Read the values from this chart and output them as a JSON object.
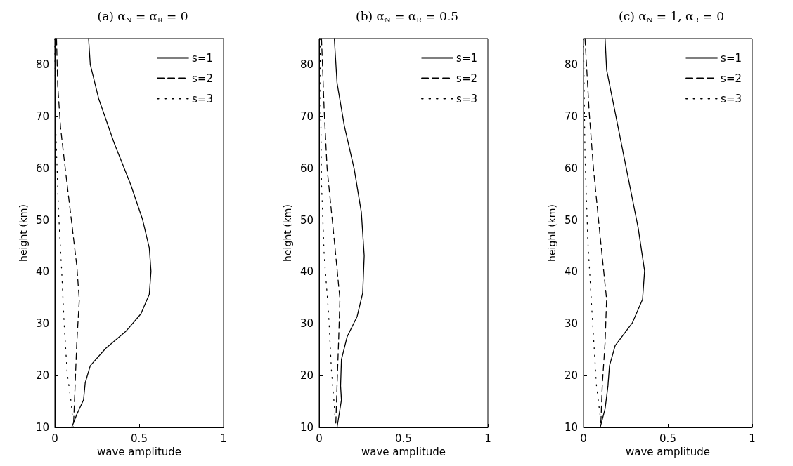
{
  "chart_data": [
    {
      "type": "line",
      "title": "(a) α$_{N}$ = α$_{R}$ = 0",
      "xlabel": "wave amplitude",
      "ylabel": "height (km)",
      "xlim": [
        0,
        1
      ],
      "xticks": [
        0,
        0.5,
        1
      ],
      "ylim": [
        10,
        85
      ],
      "yticks": [
        10,
        20,
        30,
        40,
        50,
        60,
        70,
        80
      ],
      "grid": false,
      "legend": "top right",
      "marker": "none",
      "series": [
        {
          "name": "s=1",
          "color": "#000000",
          "line_style": "solid",
          "x": [
            0.2,
            0.21,
            0.26,
            0.35,
            0.45,
            0.52,
            0.56,
            0.57,
            0.56,
            0.51,
            0.42,
            0.3,
            0.21,
            0.18,
            0.17,
            0.13,
            0.1
          ],
          "values": [
            85,
            80,
            73.4,
            65,
            56.8,
            50.1,
            44.6,
            40.1,
            35.7,
            31.9,
            28.5,
            25.2,
            21.9,
            18.6,
            15.3,
            12.5,
            10
          ]
        },
        {
          "name": "s=2",
          "color": "#000000",
          "line_style": "dashed",
          "x": [
            0.01,
            0.017,
            0.034,
            0.065,
            0.098,
            0.13,
            0.145,
            0.13,
            0.12,
            0.11
          ],
          "values": [
            85,
            76,
            67.8,
            59,
            50,
            41.2,
            34.6,
            26.3,
            18,
            10
          ]
        },
        {
          "name": "s=3",
          "color": "#000000",
          "line_style": "dotted",
          "x": [
            0,
            0.005,
            0.022,
            0.04,
            0.056,
            0.073,
            0.098,
            0.105
          ],
          "values": [
            85,
            68,
            51.5,
            40.5,
            29.5,
            20.6,
            14.5,
            11.5
          ]
        }
      ]
    },
    {
      "type": "line",
      "title": "(b) α$_{N}$ = α$_{R}$ = 0.5",
      "xlabel": "wave amplitude",
      "ylabel": "height (km)",
      "xlim": [
        0,
        1
      ],
      "xticks": [
        0,
        0.5,
        1
      ],
      "ylim": [
        10,
        85
      ],
      "yticks": [
        10,
        20,
        30,
        40,
        50,
        60,
        70,
        80
      ],
      "grid": false,
      "legend": "top right",
      "marker": "none",
      "series": [
        {
          "name": "s=1",
          "color": "#000000",
          "line_style": "solid",
          "x": [
            0.09,
            0.106,
            0.149,
            0.208,
            0.25,
            0.267,
            0.258,
            0.225,
            0.166,
            0.132,
            0.127,
            0.132,
            0.106
          ],
          "values": [
            85,
            76.5,
            68.2,
            59.8,
            51.5,
            43.1,
            35.9,
            31.4,
            27.5,
            23.1,
            18,
            15.3,
            10
          ]
        },
        {
          "name": "s=2",
          "color": "#000000",
          "line_style": "dashed",
          "x": [
            0.014,
            0.03,
            0.047,
            0.09,
            0.123,
            0.115,
            0.106,
            0.098
          ],
          "values": [
            85,
            71,
            60,
            46,
            34.8,
            26.4,
            18,
            10
          ]
        },
        {
          "name": "s=3",
          "color": "#000000",
          "line_style": "dotted",
          "x": [
            0.005,
            0.014,
            0.03,
            0.056,
            0.073,
            0.09,
            0.098
          ],
          "values": [
            85,
            57,
            43,
            32,
            20.9,
            14.2,
            10
          ]
        }
      ]
    },
    {
      "type": "line",
      "title": "(c) α$_{N}$ = 1, α$_{R}$ = 0",
      "xlabel": "wave amplitude",
      "ylabel": "height (km)",
      "xlim": [
        0,
        1
      ],
      "xticks": [
        0,
        0.5,
        1
      ],
      "ylim": [
        10,
        85
      ],
      "yticks": [
        10,
        20,
        30,
        40,
        50,
        60,
        70,
        80
      ],
      "grid": false,
      "legend": "top right",
      "marker": "none",
      "series": [
        {
          "name": "s=1",
          "color": "#000000",
          "line_style": "solid",
          "x": [
            0.128,
            0.137,
            0.188,
            0.256,
            0.324,
            0.362,
            0.35,
            0.29,
            0.188,
            0.154,
            0.145,
            0.128,
            0.099
          ],
          "values": [
            85,
            79,
            70.7,
            59.6,
            48.5,
            40.2,
            34.7,
            30.2,
            25.8,
            21.9,
            18,
            13.6,
            10
          ]
        },
        {
          "name": "s=2",
          "color": "#000000",
          "line_style": "dashed",
          "x": [
            0.009,
            0.034,
            0.06,
            0.102,
            0.137,
            0.128,
            0.111,
            0.102
          ],
          "values": [
            85,
            70.7,
            59.6,
            45.8,
            34.7,
            26.4,
            18,
            10
          ]
        },
        {
          "name": "s=3",
          "color": "#000000",
          "line_style": "dotted",
          "x": [
            0,
            0.009,
            0.026,
            0.051,
            0.077,
            0.102,
            0.106
          ],
          "values": [
            85,
            62.4,
            45.8,
            31.9,
            18,
            11.4,
            10
          ]
        }
      ]
    }
  ]
}
